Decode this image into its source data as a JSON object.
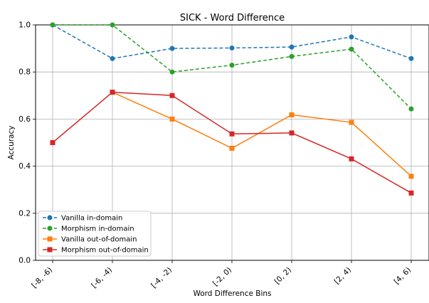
{
  "chart_data": {
    "type": "line",
    "title": "SICK - Word Difference",
    "xlabel": "Word Difference Bins",
    "ylabel": "Accuracy",
    "categories": [
      "[-8, -6)",
      "[-6, -4)",
      "[-4, -2)",
      "[-2, 0)",
      "[0, 2)",
      "[2, 4)",
      "[4, 6)"
    ],
    "ylim": [
      0.0,
      1.0
    ],
    "yticks": [
      0.0,
      0.2,
      0.4,
      0.6,
      0.8,
      1.0
    ],
    "ytick_labels": [
      "0.0",
      "0.2",
      "0.4",
      "0.6",
      "0.8",
      "1.0"
    ],
    "grid": true,
    "legend_position": "lower-left",
    "series": [
      {
        "name": "Vanilla in-domain",
        "color": "#1f77b4",
        "linestyle": "dashed",
        "marker": "circle",
        "values": [
          1.0,
          0.857,
          0.9,
          0.902,
          0.906,
          0.949,
          0.857
        ]
      },
      {
        "name": "Morphism in-domain",
        "color": "#2ca02c",
        "linestyle": "dashed",
        "marker": "circle",
        "values": [
          1.0,
          1.0,
          0.8,
          0.829,
          0.866,
          0.897,
          0.643
        ]
      },
      {
        "name": "Vanilla out-of-domain",
        "color": "#ff7f0e",
        "linestyle": "solid",
        "marker": "square",
        "values": [
          null,
          0.714,
          0.6,
          0.476,
          0.618,
          0.586,
          0.357
        ]
      },
      {
        "name": "Morphism out-of-domain",
        "color": "#d62728",
        "linestyle": "solid",
        "marker": "square",
        "values": [
          0.5,
          0.714,
          0.7,
          0.537,
          0.541,
          0.431,
          0.286
        ]
      }
    ]
  }
}
